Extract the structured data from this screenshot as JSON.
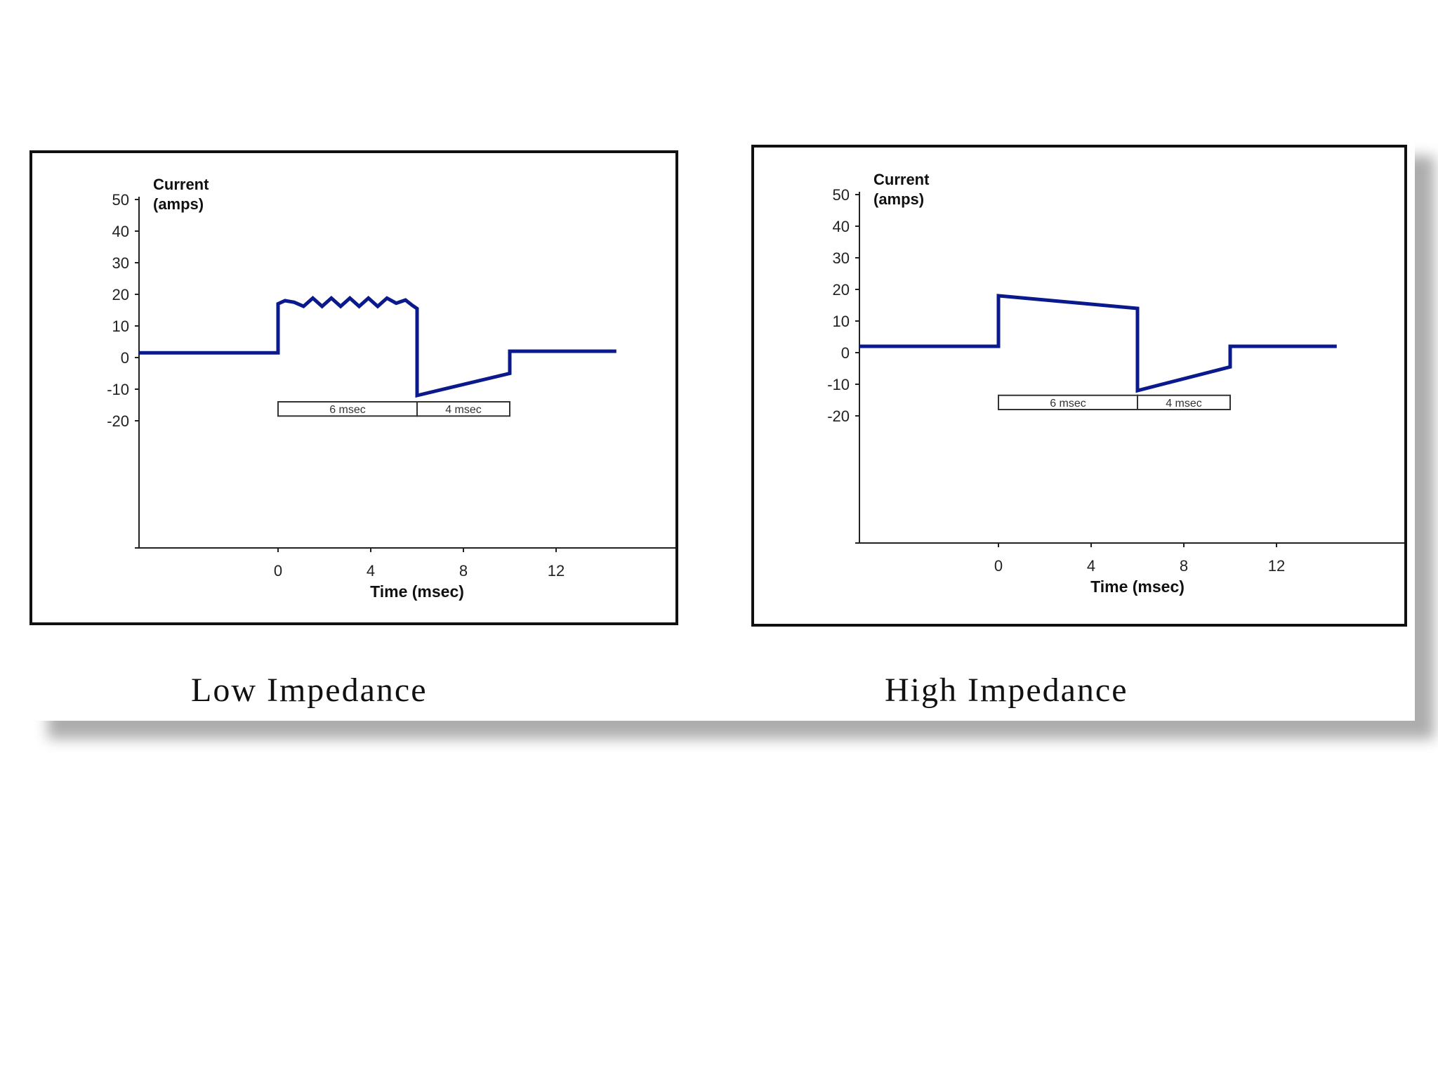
{
  "chart_data": [
    {
      "type": "line",
      "caption": "Low Impedance",
      "ylabel": [
        "Current",
        "(amps)"
      ],
      "xlabel": "Time (msec)",
      "xlim": [
        -6,
        24
      ],
      "ylim": [
        -30,
        50
      ],
      "xticks": [
        0,
        4,
        8,
        12
      ],
      "yticks": [
        50,
        40,
        30,
        20,
        10,
        0,
        -10,
        -20
      ],
      "grid": false,
      "color": "#0a1a8c",
      "series": [
        {
          "x": [
            -6,
            0,
            0,
            0.3,
            0.7,
            1.1,
            1.5,
            1.9,
            2.3,
            2.7,
            3.1,
            3.5,
            3.9,
            4.3,
            4.7,
            5.1,
            5.5,
            5.8,
            6,
            6,
            10,
            10,
            14.6
          ],
          "y": [
            1.5,
            1.5,
            17,
            18,
            17.5,
            16.2,
            18.8,
            16.2,
            18.8,
            16.2,
            18.8,
            16.2,
            18.8,
            16.2,
            18.8,
            17.2,
            18.2,
            16.5,
            15.5,
            -12,
            -5,
            2,
            2
          ]
        }
      ],
      "annotations": [
        {
          "label": "6 msec",
          "x_start": 0,
          "x_end": 6,
          "y_top": -14,
          "y_bottom": -18.5
        },
        {
          "label": "4 msec",
          "x_start": 6,
          "x_end": 10,
          "y_top": -14,
          "y_bottom": -18.5
        }
      ]
    },
    {
      "type": "line",
      "caption": "High Impedance",
      "ylabel": [
        "Current",
        "(amps)"
      ],
      "xlabel": "Time (msec)",
      "xlim": [
        -6,
        24
      ],
      "ylim": [
        -30,
        50
      ],
      "xticks": [
        0,
        4,
        8,
        12
      ],
      "yticks": [
        50,
        40,
        30,
        20,
        10,
        0,
        -10,
        -20
      ],
      "grid": false,
      "color": "#0a1a8c",
      "series": [
        {
          "x": [
            -6,
            0,
            0,
            6,
            6,
            10,
            10,
            14.6
          ],
          "y": [
            2,
            2,
            18,
            14,
            -12,
            -4.5,
            2,
            2
          ]
        }
      ],
      "annotations": [
        {
          "label": "6 msec",
          "x_start": 0,
          "x_end": 6,
          "y_top": -13.5,
          "y_bottom": -18
        },
        {
          "label": "4 msec",
          "x_start": 6,
          "x_end": 10,
          "y_top": -13.5,
          "y_bottom": -18
        }
      ]
    }
  ]
}
